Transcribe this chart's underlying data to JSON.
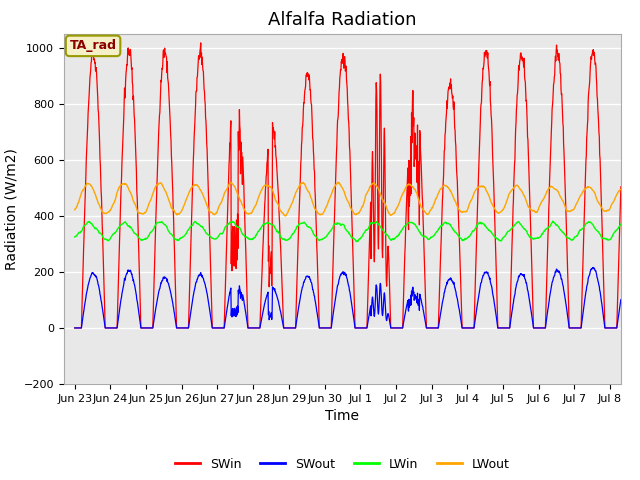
{
  "title": "Alfalfa Radiation",
  "ylabel": "Radiation (W/m2)",
  "xlabel": "Time",
  "legend_labels": [
    "SWin",
    "SWout",
    "LWin",
    "LWout"
  ],
  "legend_colors": [
    "red",
    "blue",
    "green",
    "orange"
  ],
  "annotation_text": "TA_rad",
  "annotation_color": "#8B0000",
  "annotation_bg": "#F5F0C8",
  "annotation_edge": "#999900",
  "ylim": [
    -200,
    1050
  ],
  "bg_color": "#E8E8E8",
  "title_fontsize": 13,
  "axis_fontsize": 10,
  "tick_fontsize": 8,
  "num_days": 16,
  "dt_hours": 0.25,
  "SWin_peaks": [
    980,
    990,
    985,
    980,
    960,
    725,
    910,
    975,
    940,
    905,
    870,
    990,
    985,
    985,
    990,
    970
  ],
  "SWout_peaks": [
    195,
    205,
    180,
    190,
    185,
    145,
    185,
    200,
    165,
    155,
    175,
    200,
    195,
    205,
    215,
    195
  ],
  "LWin_base": 345,
  "LWout_base": 460,
  "LWin_amplitude": 30,
  "LWout_amplitude": 55,
  "x_tick_labels": [
    "Jun 23",
    "Jun 24",
    "Jun 25",
    "Jun 26",
    "Jun 27",
    "Jun 28",
    "Jun 29",
    "Jun 30",
    "Jul 1",
    "Jul 2",
    "Jul 3",
    "Jul 4",
    "Jul 5",
    "Jul 6",
    "Jul 7",
    "Jul 8"
  ]
}
